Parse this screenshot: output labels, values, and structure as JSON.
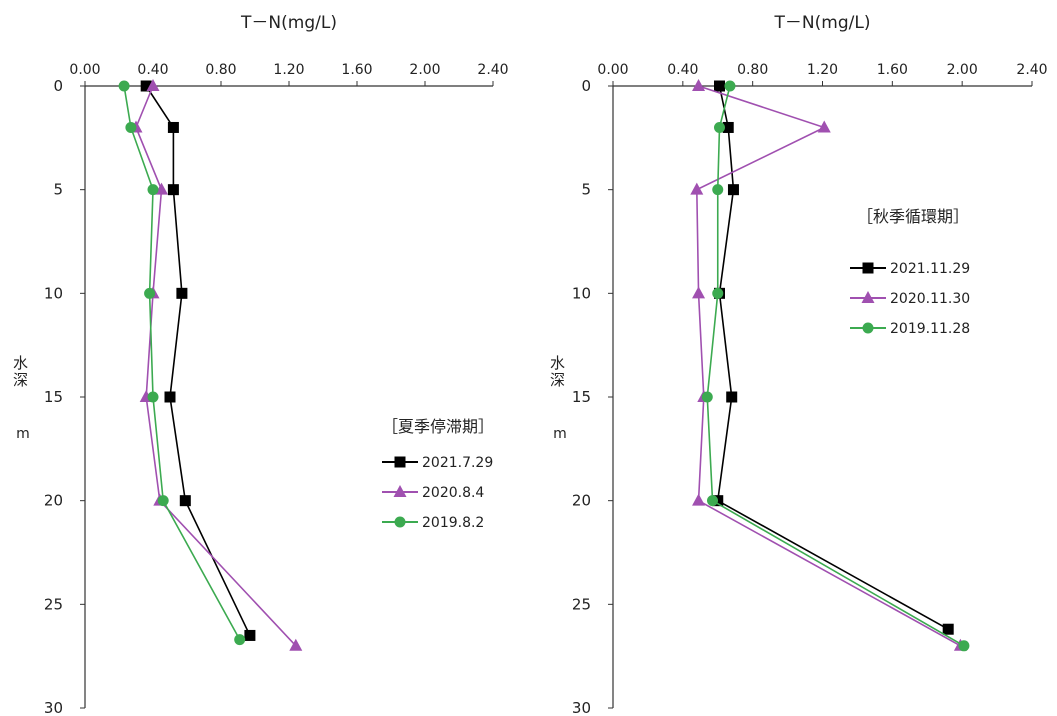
{
  "chart_data": [
    {
      "type": "line",
      "xlabel": "T－N(mg/L)",
      "ylabel": "水深",
      "yunit": "m",
      "xlim": [
        0,
        2.4
      ],
      "xticks": [
        "0.00",
        "0.40",
        "0.80",
        "1.20",
        "1.60",
        "2.00",
        "2.40"
      ],
      "ylim": [
        0,
        30
      ],
      "yticks": [
        "0",
        "5",
        "10",
        "15",
        "20",
        "25",
        "30"
      ],
      "legend_title": "［夏季停滞期］",
      "series": [
        {
          "name": "2021.7.29",
          "color": "#000000",
          "marker": "square",
          "x": [
            0.36,
            0.52,
            0.52,
            0.57,
            0.5,
            0.59,
            0.97
          ],
          "y": [
            0,
            2,
            5,
            10,
            15,
            20,
            26.5
          ]
        },
        {
          "name": "2020.8.4",
          "color": "#a050b0",
          "marker": "triangle",
          "x": [
            0.4,
            0.3,
            0.45,
            0.4,
            0.36,
            0.44,
            1.24
          ],
          "y": [
            0,
            2,
            5,
            10,
            15,
            20,
            27
          ]
        },
        {
          "name": "2019.8.2",
          "color": "#3caa50",
          "marker": "circle",
          "x": [
            0.23,
            0.27,
            0.4,
            0.38,
            0.4,
            0.46,
            0.91
          ],
          "y": [
            0,
            2,
            5,
            10,
            15,
            20,
            26.7
          ]
        }
      ]
    },
    {
      "type": "line",
      "xlabel": "T－N(mg/L)",
      "ylabel": "水深",
      "yunit": "m",
      "xlim": [
        0,
        2.4
      ],
      "xticks": [
        "0.00",
        "0.40",
        "0.80",
        "1.20",
        "1.60",
        "2.00",
        "2.40"
      ],
      "ylim": [
        0,
        30
      ],
      "yticks": [
        "0",
        "5",
        "10",
        "15",
        "20",
        "25",
        "30"
      ],
      "legend_title": "［秋季循環期］",
      "series": [
        {
          "name": "2021.11.29",
          "color": "#000000",
          "marker": "square",
          "x": [
            0.61,
            0.66,
            0.69,
            0.61,
            0.68,
            0.6,
            1.92
          ],
          "y": [
            0,
            2,
            5,
            10,
            15,
            20,
            26.2
          ]
        },
        {
          "name": "2020.11.30",
          "color": "#a050b0",
          "marker": "triangle",
          "x": [
            0.49,
            1.21,
            0.48,
            0.49,
            0.52,
            0.49,
            1.99
          ],
          "y": [
            0,
            2,
            5,
            10,
            15,
            20,
            27
          ]
        },
        {
          "name": "2019.11.28",
          "color": "#3caa50",
          "marker": "circle",
          "x": [
            0.67,
            0.61,
            0.6,
            0.6,
            0.54,
            0.57,
            2.01
          ],
          "y": [
            0,
            2,
            5,
            10,
            15,
            20,
            27
          ]
        }
      ]
    }
  ]
}
